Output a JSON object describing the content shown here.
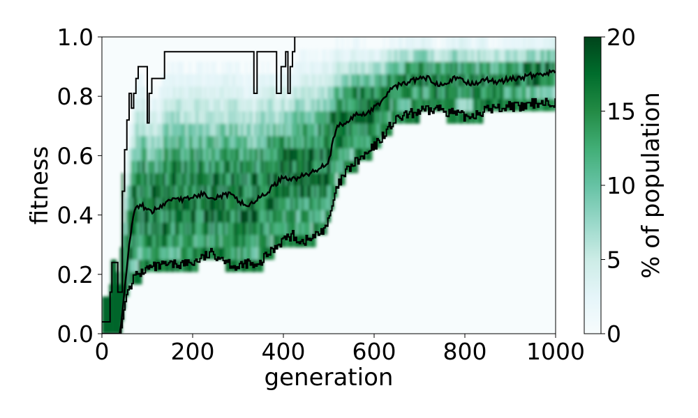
{
  "chart_data": {
    "type": "heatmap",
    "xlabel": "generation",
    "ylabel": "fitness",
    "xlim": [
      0,
      1000
    ],
    "ylim": [
      0,
      1
    ],
    "x_ticks": [
      {
        "value": 0,
        "label": "0"
      },
      {
        "value": 200,
        "label": "200"
      },
      {
        "value": 400,
        "label": "400"
      },
      {
        "value": 600,
        "label": "600"
      },
      {
        "value": 800,
        "label": "800"
      },
      {
        "value": 1000,
        "label": "1000"
      }
    ],
    "y_ticks": [
      {
        "value": 0.0,
        "label": "0.0"
      },
      {
        "value": 0.2,
        "label": "0.2"
      },
      {
        "value": 0.4,
        "label": "0.4"
      },
      {
        "value": 0.6,
        "label": "0.6"
      },
      {
        "value": 0.8,
        "label": "0.8"
      },
      {
        "value": 1.0,
        "label": "1.0"
      }
    ],
    "colorbar": {
      "label": "% of population",
      "range": [
        0,
        20
      ],
      "ticks": [
        {
          "value": 0,
          "label": "0"
        },
        {
          "value": 5,
          "label": "5"
        },
        {
          "value": 10,
          "label": "10"
        },
        {
          "value": 15,
          "label": "15"
        },
        {
          "value": 20,
          "label": "20"
        }
      ],
      "colormap": [
        "#f7fcfd",
        "#e5f5f9",
        "#ccece6",
        "#99d8c9",
        "#66c2a4",
        "#41ae76",
        "#238b45",
        "#006d2c",
        "#00441b"
      ]
    },
    "series": [
      {
        "role": "max",
        "points": [
          [
            0,
            0.04
          ],
          [
            15,
            0.04
          ],
          [
            18,
            0.14
          ],
          [
            22,
            0.24
          ],
          [
            32,
            0.24
          ],
          [
            35,
            0.14
          ],
          [
            40,
            0.14
          ],
          [
            45,
            0.48
          ],
          [
            50,
            0.62
          ],
          [
            55,
            0.72
          ],
          [
            60,
            0.81
          ],
          [
            65,
            0.76
          ],
          [
            70,
            0.81
          ],
          [
            75,
            0.86
          ],
          [
            80,
            0.9
          ],
          [
            95,
            0.9
          ],
          [
            100,
            0.71
          ],
          [
            104,
            0.81
          ],
          [
            110,
            0.86
          ],
          [
            130,
            0.86
          ],
          [
            138,
            0.95
          ],
          [
            330,
            0.95
          ],
          [
            335,
            0.81
          ],
          [
            342,
            0.95
          ],
          [
            380,
            0.95
          ],
          [
            385,
            0.81
          ],
          [
            395,
            0.9
          ],
          [
            405,
            0.95
          ],
          [
            410,
            0.81
          ],
          [
            415,
            0.9
          ],
          [
            420,
            0.95
          ],
          [
            425,
            1.0
          ]
        ]
      },
      {
        "role": "mean",
        "points": [
          [
            0,
            0.0
          ],
          [
            40,
            0.0
          ],
          [
            45,
            0.07
          ],
          [
            50,
            0.15
          ],
          [
            55,
            0.22
          ],
          [
            60,
            0.3
          ],
          [
            65,
            0.36
          ],
          [
            70,
            0.4
          ],
          [
            75,
            0.42
          ],
          [
            80,
            0.43
          ],
          [
            90,
            0.43
          ],
          [
            100,
            0.42
          ],
          [
            110,
            0.41
          ],
          [
            120,
            0.42
          ],
          [
            140,
            0.44
          ],
          [
            160,
            0.46
          ],
          [
            180,
            0.45
          ],
          [
            200,
            0.46
          ],
          [
            220,
            0.47
          ],
          [
            250,
            0.46
          ],
          [
            280,
            0.47
          ],
          [
            300,
            0.45
          ],
          [
            320,
            0.43
          ],
          [
            340,
            0.45
          ],
          [
            360,
            0.47
          ],
          [
            380,
            0.5
          ],
          [
            400,
            0.53
          ],
          [
            420,
            0.52
          ],
          [
            440,
            0.53
          ],
          [
            460,
            0.54
          ],
          [
            480,
            0.56
          ],
          [
            500,
            0.58
          ],
          [
            510,
            0.65
          ],
          [
            520,
            0.7
          ],
          [
            540,
            0.71
          ],
          [
            560,
            0.74
          ],
          [
            580,
            0.74
          ],
          [
            600,
            0.76
          ],
          [
            620,
            0.79
          ],
          [
            640,
            0.83
          ],
          [
            660,
            0.84
          ],
          [
            680,
            0.85
          ],
          [
            700,
            0.86
          ],
          [
            720,
            0.86
          ],
          [
            740,
            0.84
          ],
          [
            760,
            0.85
          ],
          [
            780,
            0.86
          ],
          [
            800,
            0.85
          ],
          [
            820,
            0.84
          ],
          [
            840,
            0.86
          ],
          [
            860,
            0.85
          ],
          [
            880,
            0.85
          ],
          [
            900,
            0.86
          ],
          [
            920,
            0.86
          ],
          [
            940,
            0.87
          ],
          [
            960,
            0.87
          ],
          [
            980,
            0.88
          ],
          [
            1000,
            0.88
          ]
        ]
      },
      {
        "role": "min",
        "points": [
          [
            0,
            0.0
          ],
          [
            40,
            0.0
          ],
          [
            45,
            0.05
          ],
          [
            50,
            0.1
          ],
          [
            55,
            0.14
          ],
          [
            60,
            0.16
          ],
          [
            70,
            0.19
          ],
          [
            80,
            0.2
          ],
          [
            90,
            0.21
          ],
          [
            100,
            0.22
          ],
          [
            140,
            0.23
          ],
          [
            200,
            0.24
          ],
          [
            240,
            0.27
          ],
          [
            260,
            0.26
          ],
          [
            280,
            0.24
          ],
          [
            300,
            0.22
          ],
          [
            320,
            0.24
          ],
          [
            340,
            0.22
          ],
          [
            360,
            0.26
          ],
          [
            380,
            0.29
          ],
          [
            400,
            0.32
          ],
          [
            420,
            0.33
          ],
          [
            440,
            0.31
          ],
          [
            460,
            0.32
          ],
          [
            480,
            0.34
          ],
          [
            500,
            0.38
          ],
          [
            510,
            0.45
          ],
          [
            520,
            0.5
          ],
          [
            540,
            0.55
          ],
          [
            560,
            0.58
          ],
          [
            580,
            0.6
          ],
          [
            600,
            0.63
          ],
          [
            620,
            0.67
          ],
          [
            640,
            0.71
          ],
          [
            660,
            0.73
          ],
          [
            680,
            0.74
          ],
          [
            700,
            0.75
          ],
          [
            720,
            0.75
          ],
          [
            740,
            0.76
          ],
          [
            760,
            0.75
          ],
          [
            780,
            0.74
          ],
          [
            800,
            0.73
          ],
          [
            820,
            0.74
          ],
          [
            840,
            0.75
          ],
          [
            860,
            0.76
          ],
          [
            880,
            0.76
          ],
          [
            900,
            0.77
          ],
          [
            920,
            0.76
          ],
          [
            940,
            0.77
          ],
          [
            960,
            0.78
          ],
          [
            980,
            0.78
          ],
          [
            1000,
            0.78
          ]
        ]
      }
    ]
  }
}
